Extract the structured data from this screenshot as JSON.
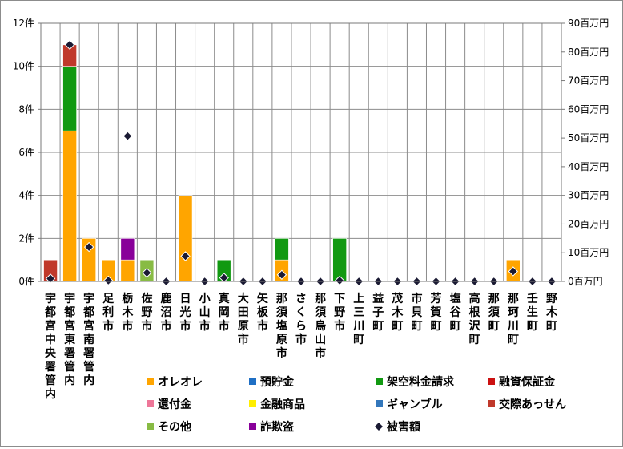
{
  "chart_data": {
    "type": "bar",
    "stacked": true,
    "categories": [
      "宇都宮中央署管内",
      "宇都宮東署管内",
      "宇都宮南署管内",
      "足利市",
      "栃木市",
      "佐野市",
      "鹿沼市",
      "日光市",
      "小山市",
      "真岡市",
      "大田原市",
      "矢板市",
      "那須塩原市",
      "さくら市",
      "那須烏山市",
      "下野市",
      "上三川町",
      "益子町",
      "茂木町",
      "市貝町",
      "芳賀町",
      "塩谷町",
      "高根沢町",
      "那須町",
      "那珂川町",
      "壬生町",
      "野木町"
    ],
    "y_left": {
      "ylim": [
        0,
        12
      ],
      "ticks": [
        "0件",
        "2件",
        "4件",
        "6件",
        "8件",
        "10件",
        "12件"
      ],
      "tick_values": [
        0,
        2,
        4,
        6,
        8,
        10,
        12
      ]
    },
    "y_right": {
      "ylim": [
        0,
        90
      ],
      "ticks": [
        "0百万円",
        "10百万円",
        "20百万円",
        "30百万円",
        "40百万円",
        "50百万円",
        "60百万円",
        "70百万円",
        "80百万円",
        "90百万円"
      ],
      "tick_values": [
        0,
        10,
        20,
        30,
        40,
        50,
        60,
        70,
        80,
        90
      ]
    },
    "series": [
      {
        "name": "オレオレ",
        "color": "#FFA500",
        "values": [
          0,
          7,
          2,
          1,
          1,
          0,
          0,
          4,
          0,
          0,
          0,
          0,
          1,
          0,
          0,
          0,
          0,
          0,
          0,
          0,
          0,
          0,
          0,
          0,
          1,
          0,
          0
        ]
      },
      {
        "name": "預貯金",
        "color": "#1F6FC4",
        "values": [
          0,
          0,
          0,
          0,
          0,
          0,
          0,
          0,
          0,
          0,
          0,
          0,
          0,
          0,
          0,
          0,
          0,
          0,
          0,
          0,
          0,
          0,
          0,
          0,
          0,
          0,
          0
        ]
      },
      {
        "name": "架空料金請求",
        "color": "#119911",
        "values": [
          0,
          3,
          0,
          0,
          0,
          0,
          0,
          0,
          0,
          1,
          0,
          0,
          1,
          0,
          0,
          2,
          0,
          0,
          0,
          0,
          0,
          0,
          0,
          0,
          0,
          0,
          0
        ]
      },
      {
        "name": "融資保証金",
        "color": "#CC1111",
        "values": [
          0,
          0,
          0,
          0,
          0,
          0,
          0,
          0,
          0,
          0,
          0,
          0,
          0,
          0,
          0,
          0,
          0,
          0,
          0,
          0,
          0,
          0,
          0,
          0,
          0,
          0,
          0
        ]
      },
      {
        "name": "還付金",
        "color": "#EE7799",
        "values": [
          0,
          0,
          0,
          0,
          0,
          0,
          0,
          0,
          0,
          0,
          0,
          0,
          0,
          0,
          0,
          0,
          0,
          0,
          0,
          0,
          0,
          0,
          0,
          0,
          0,
          0,
          0
        ]
      },
      {
        "name": "金融商品",
        "color": "#FFEE00",
        "values": [
          0,
          0,
          0,
          0,
          0,
          0,
          0,
          0,
          0,
          0,
          0,
          0,
          0,
          0,
          0,
          0,
          0,
          0,
          0,
          0,
          0,
          0,
          0,
          0,
          0,
          0,
          0
        ]
      },
      {
        "name": "ギャンブル",
        "color": "#3377BB",
        "values": [
          0,
          0,
          0,
          0,
          0,
          0,
          0,
          0,
          0,
          0,
          0,
          0,
          0,
          0,
          0,
          0,
          0,
          0,
          0,
          0,
          0,
          0,
          0,
          0,
          0,
          0,
          0
        ]
      },
      {
        "name": "交際あっせん",
        "color": "#C0392B",
        "values": [
          1,
          1,
          0,
          0,
          0,
          0,
          0,
          0,
          0,
          0,
          0,
          0,
          0,
          0,
          0,
          0,
          0,
          0,
          0,
          0,
          0,
          0,
          0,
          0,
          0,
          0,
          0
        ]
      },
      {
        "name": "その他",
        "color": "#88BB44",
        "values": [
          0,
          0,
          0,
          0,
          0,
          1,
          0,
          0,
          0,
          0,
          0,
          0,
          0,
          0,
          0,
          0,
          0,
          0,
          0,
          0,
          0,
          0,
          0,
          0,
          0,
          0,
          0
        ]
      },
      {
        "name": "詐欺盗",
        "color": "#880099",
        "values": [
          0,
          0,
          0,
          0,
          1,
          0,
          0,
          0,
          0,
          0,
          0,
          0,
          0,
          0,
          0,
          0,
          0,
          0,
          0,
          0,
          0,
          0,
          0,
          0,
          0,
          0,
          0
        ]
      }
    ],
    "damage": {
      "name": "被害額",
      "color": "#1a1a33",
      "values": [
        1,
        82.5,
        12,
        0.3,
        50.7,
        3,
        0,
        8.8,
        0,
        1.3,
        0,
        0,
        2.3,
        0,
        0,
        0.3,
        0,
        0,
        0,
        0,
        0,
        0,
        0,
        0,
        3.5,
        0,
        0
      ]
    },
    "legend": [
      {
        "label": "オレオレ",
        "color": "#FFA500",
        "kind": "square"
      },
      {
        "label": "預貯金",
        "color": "#1F6FC4",
        "kind": "square"
      },
      {
        "label": "架空料金請求",
        "color": "#119911",
        "kind": "square"
      },
      {
        "label": "融資保証金",
        "color": "#CC1111",
        "kind": "square"
      },
      {
        "label": "還付金",
        "color": "#EE7799",
        "kind": "square"
      },
      {
        "label": "金融商品",
        "color": "#FFEE00",
        "kind": "square"
      },
      {
        "label": "ギャンブル",
        "color": "#3377BB",
        "kind": "square"
      },
      {
        "label": "交際あっせん",
        "color": "#C0392B",
        "kind": "square"
      },
      {
        "label": "その他",
        "color": "#88BB44",
        "kind": "square"
      },
      {
        "label": "詐欺盗",
        "color": "#880099",
        "kind": "square"
      },
      {
        "label": "被害額",
        "color": "#1a1a33",
        "kind": "diamond"
      }
    ],
    "grid": true,
    "legend_position": "bottom"
  }
}
